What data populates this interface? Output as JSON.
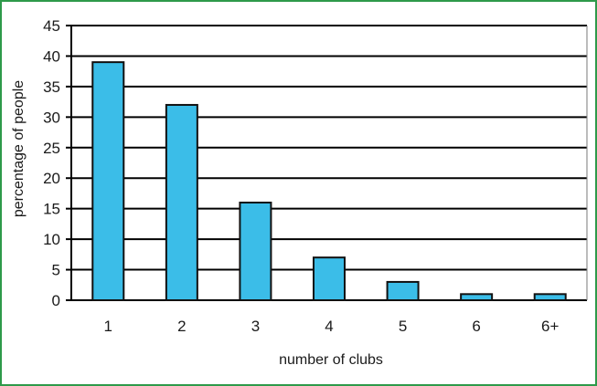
{
  "chart_data": {
    "type": "bar",
    "categories": [
      "1",
      "2",
      "3",
      "4",
      "5",
      "6",
      "6+"
    ],
    "values": [
      39,
      32,
      16,
      7,
      3,
      1,
      1
    ],
    "xlabel": "number of clubs",
    "ylabel": "percentage of people",
    "ylim": [
      0,
      45
    ],
    "yticks": [
      0,
      5,
      10,
      15,
      20,
      25,
      30,
      35,
      40,
      45
    ],
    "grid": true,
    "legend": "none",
    "colors": {
      "bar_fill": "#3bbde8",
      "bar_stroke": "#111111",
      "grid": "#000000",
      "frame": "#2e9a4a"
    }
  }
}
